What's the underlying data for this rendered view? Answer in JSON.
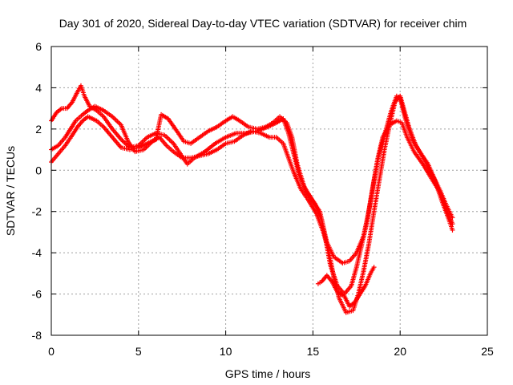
{
  "chart_data": {
    "type": "scatter",
    "title": "Day 301 of 2020, Sidereal Day-to-day VTEC variation (SDTVAR) for receiver chim",
    "xlabel": "GPS time / hours",
    "ylabel": "SDTVAR / TECUs",
    "xlim": [
      0,
      25
    ],
    "ylim": [
      -8,
      6
    ],
    "xticks": [
      "0",
      "5",
      "10",
      "15",
      "20",
      "25"
    ],
    "yticks": [
      "-8",
      "-6",
      "-4",
      "-2",
      "0",
      "2",
      "4",
      "6"
    ],
    "grid": true,
    "legend": "none",
    "marker": "+",
    "color": "#ff0000",
    "series": [
      {
        "points": [
          [
            0.0,
            2.4
          ],
          [
            0.3,
            2.8
          ],
          [
            0.6,
            3.0
          ],
          [
            0.9,
            3.0
          ],
          [
            1.2,
            3.3
          ],
          [
            1.5,
            3.8
          ],
          [
            1.7,
            4.1
          ],
          [
            1.9,
            3.6
          ],
          [
            2.2,
            3.1
          ],
          [
            2.6,
            2.9
          ],
          [
            3.0,
            2.6
          ],
          [
            3.5,
            2.0
          ],
          [
            4.0,
            1.5
          ],
          [
            4.5,
            1.1
          ],
          [
            5.0,
            1.2
          ],
          [
            5.5,
            1.6
          ],
          [
            6.0,
            1.8
          ],
          [
            6.5,
            1.7
          ],
          [
            7.0,
            1.3
          ],
          [
            7.4,
            0.8
          ],
          [
            7.8,
            0.3
          ],
          [
            8.2,
            0.6
          ],
          [
            8.8,
            0.9
          ],
          [
            9.4,
            1.3
          ],
          [
            10.0,
            1.6
          ],
          [
            10.6,
            1.8
          ],
          [
            11.2,
            1.8
          ],
          [
            11.8,
            1.9
          ],
          [
            12.4,
            2.1
          ],
          [
            12.9,
            2.3
          ],
          [
            13.3,
            2.5
          ],
          [
            13.6,
            1.8
          ],
          [
            13.9,
            0.8
          ],
          [
            14.2,
            -0.2
          ],
          [
            14.6,
            -1.0
          ],
          [
            15.1,
            -1.6
          ],
          [
            15.5,
            -2.4
          ],
          [
            15.8,
            -3.5
          ],
          [
            16.2,
            -4.2
          ],
          [
            16.7,
            -4.5
          ],
          [
            17.1,
            -4.4
          ],
          [
            17.5,
            -4.0
          ],
          [
            17.9,
            -3.2
          ],
          [
            18.2,
            -2.0
          ],
          [
            18.5,
            -0.5
          ],
          [
            18.8,
            0.8
          ],
          [
            19.2,
            2.0
          ],
          [
            19.5,
            2.9
          ],
          [
            19.8,
            3.6
          ],
          [
            20.0,
            3.5
          ],
          [
            20.3,
            2.5
          ],
          [
            20.7,
            1.5
          ],
          [
            21.2,
            0.8
          ],
          [
            21.6,
            0.3
          ],
          [
            22.0,
            -0.5
          ],
          [
            22.4,
            -1.5
          ],
          [
            22.8,
            -2.4
          ],
          [
            23.0,
            -2.9
          ]
        ]
      },
      {
        "points": [
          [
            0.0,
            0.4
          ],
          [
            0.4,
            0.8
          ],
          [
            0.8,
            1.2
          ],
          [
            1.2,
            1.7
          ],
          [
            1.5,
            2.1
          ],
          [
            1.8,
            2.4
          ],
          [
            2.1,
            2.6
          ],
          [
            2.6,
            2.4
          ],
          [
            3.0,
            2.1
          ],
          [
            3.5,
            1.6
          ],
          [
            4.0,
            1.1
          ],
          [
            4.5,
            1.0
          ],
          [
            5.0,
            1.1
          ],
          [
            5.5,
            1.3
          ],
          [
            6.0,
            1.5
          ],
          [
            6.3,
            2.7
          ],
          [
            6.7,
            2.5
          ],
          [
            7.2,
            1.9
          ],
          [
            7.6,
            1.4
          ],
          [
            8.0,
            1.3
          ],
          [
            8.5,
            1.6
          ],
          [
            9.0,
            1.9
          ],
          [
            9.5,
            2.1
          ],
          [
            10.0,
            2.4
          ],
          [
            10.4,
            2.6
          ],
          [
            10.8,
            2.4
          ],
          [
            11.3,
            2.1
          ],
          [
            11.8,
            2.0
          ],
          [
            12.3,
            2.1
          ],
          [
            12.7,
            2.3
          ],
          [
            13.1,
            2.6
          ],
          [
            13.5,
            2.3
          ],
          [
            13.8,
            1.6
          ],
          [
            14.1,
            0.3
          ],
          [
            14.5,
            -0.8
          ],
          [
            15.0,
            -1.5
          ],
          [
            15.4,
            -2.0
          ],
          [
            15.7,
            -3.2
          ],
          [
            16.0,
            -4.6
          ],
          [
            16.4,
            -5.6
          ],
          [
            16.8,
            -6.0
          ],
          [
            17.2,
            -5.6
          ],
          [
            17.5,
            -4.7
          ],
          [
            17.8,
            -3.6
          ],
          [
            18.1,
            -2.5
          ],
          [
            18.4,
            -1.0
          ],
          [
            18.7,
            0.5
          ],
          [
            19.0,
            1.6
          ],
          [
            19.4,
            2.2
          ],
          [
            19.8,
            2.4
          ],
          [
            20.1,
            2.3
          ],
          [
            20.4,
            1.6
          ],
          [
            20.8,
            0.9
          ],
          [
            21.3,
            0.3
          ],
          [
            21.8,
            -0.4
          ],
          [
            22.3,
            -1.1
          ],
          [
            22.7,
            -2.0
          ],
          [
            23.0,
            -2.6
          ]
        ]
      },
      {
        "points": [
          [
            0.0,
            1.0
          ],
          [
            0.4,
            1.2
          ],
          [
            0.8,
            1.6
          ],
          [
            1.1,
            2.0
          ],
          [
            1.4,
            2.4
          ],
          [
            1.8,
            2.7
          ],
          [
            2.1,
            2.9
          ],
          [
            2.5,
            3.1
          ],
          [
            3.0,
            2.9
          ],
          [
            3.5,
            2.6
          ],
          [
            4.0,
            2.2
          ],
          [
            4.4,
            1.4
          ],
          [
            4.8,
            0.9
          ],
          [
            5.3,
            1.0
          ],
          [
            5.8,
            1.4
          ],
          [
            6.2,
            1.6
          ],
          [
            6.6,
            1.2
          ],
          [
            7.0,
            0.9
          ],
          [
            7.5,
            0.6
          ],
          [
            8.0,
            0.6
          ],
          [
            8.5,
            0.7
          ],
          [
            9.0,
            0.8
          ],
          [
            9.5,
            1.0
          ],
          [
            10.0,
            1.3
          ],
          [
            10.5,
            1.4
          ],
          [
            11.0,
            1.7
          ],
          [
            11.5,
            1.9
          ],
          [
            12.0,
            1.8
          ],
          [
            12.5,
            1.6
          ],
          [
            12.9,
            1.6
          ],
          [
            13.3,
            1.3
          ],
          [
            13.6,
            0.6
          ],
          [
            13.9,
            -0.1
          ],
          [
            14.3,
            -0.9
          ],
          [
            14.7,
            -1.4
          ],
          [
            15.2,
            -2.1
          ],
          [
            15.6,
            -3.0
          ],
          [
            15.9,
            -3.9
          ],
          [
            16.2,
            -5.2
          ],
          [
            16.5,
            -6.2
          ],
          [
            16.9,
            -6.9
          ],
          [
            17.3,
            -6.8
          ],
          [
            17.6,
            -6.0
          ],
          [
            17.9,
            -4.9
          ],
          [
            18.2,
            -3.6
          ],
          [
            18.5,
            -2.0
          ],
          [
            18.8,
            -0.5
          ],
          [
            19.1,
            1.0
          ],
          [
            19.4,
            2.2
          ],
          [
            19.7,
            3.3
          ],
          [
            20.0,
            3.6
          ],
          [
            20.2,
            3.0
          ],
          [
            20.5,
            2.1
          ],
          [
            20.9,
            1.2
          ],
          [
            21.4,
            0.5
          ],
          [
            21.9,
            -0.3
          ],
          [
            22.3,
            -1.0
          ],
          [
            22.6,
            -1.6
          ],
          [
            23.0,
            -2.3
          ]
        ]
      },
      {
        "points": [
          [
            15.3,
            -5.5
          ],
          [
            15.5,
            -5.4
          ],
          [
            15.8,
            -5.1
          ],
          [
            16.1,
            -5.4
          ],
          [
            16.4,
            -5.9
          ],
          [
            16.8,
            -6.1
          ],
          [
            17.1,
            -6.6
          ],
          [
            17.4,
            -6.4
          ],
          [
            17.7,
            -6.0
          ],
          [
            18.0,
            -5.6
          ],
          [
            18.3,
            -5.0
          ],
          [
            18.5,
            -4.7
          ]
        ]
      }
    ]
  }
}
